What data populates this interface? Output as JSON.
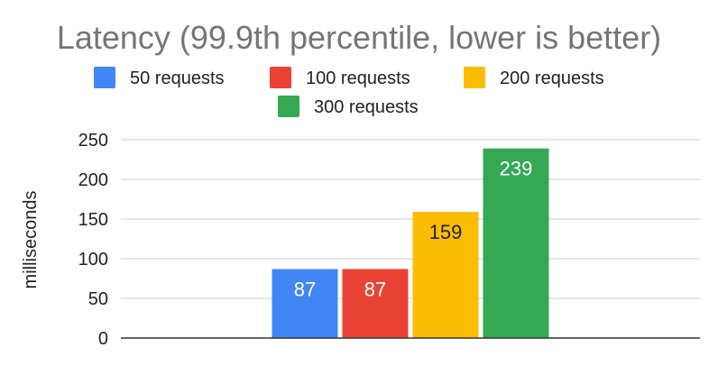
{
  "chart_data": {
    "type": "bar",
    "title": "Latency (99.9th percentile, lower is better)",
    "ylabel": "milliseconds",
    "xlabel": "",
    "ylim": [
      0,
      250
    ],
    "yticks": [
      0,
      50,
      100,
      150,
      200,
      250
    ],
    "grid": true,
    "legend_position": "top",
    "categories": [
      ""
    ],
    "series": [
      {
        "name": "50 requests",
        "values": [
          87
        ],
        "color": "#4285F4",
        "label_color": "#ffffff"
      },
      {
        "name": "100 requests",
        "values": [
          87
        ],
        "color": "#EA4335",
        "label_color": "#ffffff"
      },
      {
        "name": "200 requests",
        "values": [
          159
        ],
        "color": "#FBBC04",
        "label_color": "#222222"
      },
      {
        "name": "300 requests",
        "values": [
          239
        ],
        "color": "#34A853",
        "label_color": "#ffffff"
      }
    ]
  }
}
